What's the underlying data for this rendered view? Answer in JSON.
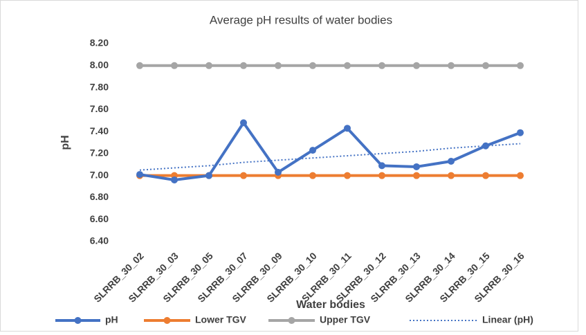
{
  "chart_data": {
    "type": "line",
    "title": "Average pH results of water bodies",
    "x_label": "Water bodies",
    "y_label": "pH",
    "categories": [
      "SLRRB_30_02",
      "SLRRB_30_03",
      "SLRRB_30_05",
      "SLRRB_30_07",
      "SLRRB_30_09",
      "SLRRB_30_10",
      "SLRRB_30_11",
      "SLRRB_30_12",
      "SLRRB_30_13",
      "SLRRB_30_14",
      "SLRRB_30_15",
      "SLRRB_30_16"
    ],
    "series": [
      {
        "name": "pH",
        "color": "#4472c4",
        "markers": true,
        "values": [
          7.01,
          6.96,
          7.0,
          7.48,
          7.03,
          7.23,
          7.43,
          7.09,
          7.08,
          7.13,
          7.27,
          7.39
        ]
      },
      {
        "name": "Lower TGV",
        "color": "#ed7d31",
        "markers": true,
        "values": [
          7.0,
          7.0,
          7.0,
          7.0,
          7.0,
          7.0,
          7.0,
          7.0,
          7.0,
          7.0,
          7.0,
          7.0
        ]
      },
      {
        "name": "Upper TGV",
        "color": "#a5a5a5",
        "markers": true,
        "values": [
          8.0,
          8.0,
          8.0,
          8.0,
          8.0,
          8.0,
          8.0,
          8.0,
          8.0,
          8.0,
          8.0,
          8.0
        ]
      },
      {
        "name": "Linear (pH)",
        "color": "#4472c4",
        "markers": false,
        "dotted": true,
        "values": [
          7.05,
          7.07,
          7.09,
          7.12,
          7.14,
          7.16,
          7.18,
          7.2,
          7.22,
          7.25,
          7.27,
          7.29
        ]
      }
    ],
    "ylim": [
      6.4,
      8.2
    ],
    "yticks": [
      {
        "value": 6.4,
        "label": "6.40"
      },
      {
        "value": 6.6,
        "label": "6.60"
      },
      {
        "value": 6.8,
        "label": "6.80"
      },
      {
        "value": 7.0,
        "label": "7.00"
      },
      {
        "value": 7.2,
        "label": "7.20"
      },
      {
        "value": 7.4,
        "label": "7.40"
      },
      {
        "value": 7.6,
        "label": "7.60"
      },
      {
        "value": 7.8,
        "label": "7.80"
      },
      {
        "value": 8.0,
        "label": "8.00"
      },
      {
        "value": 8.2,
        "label": "8.20"
      }
    ],
    "grid": false,
    "legend": "bottom"
  }
}
